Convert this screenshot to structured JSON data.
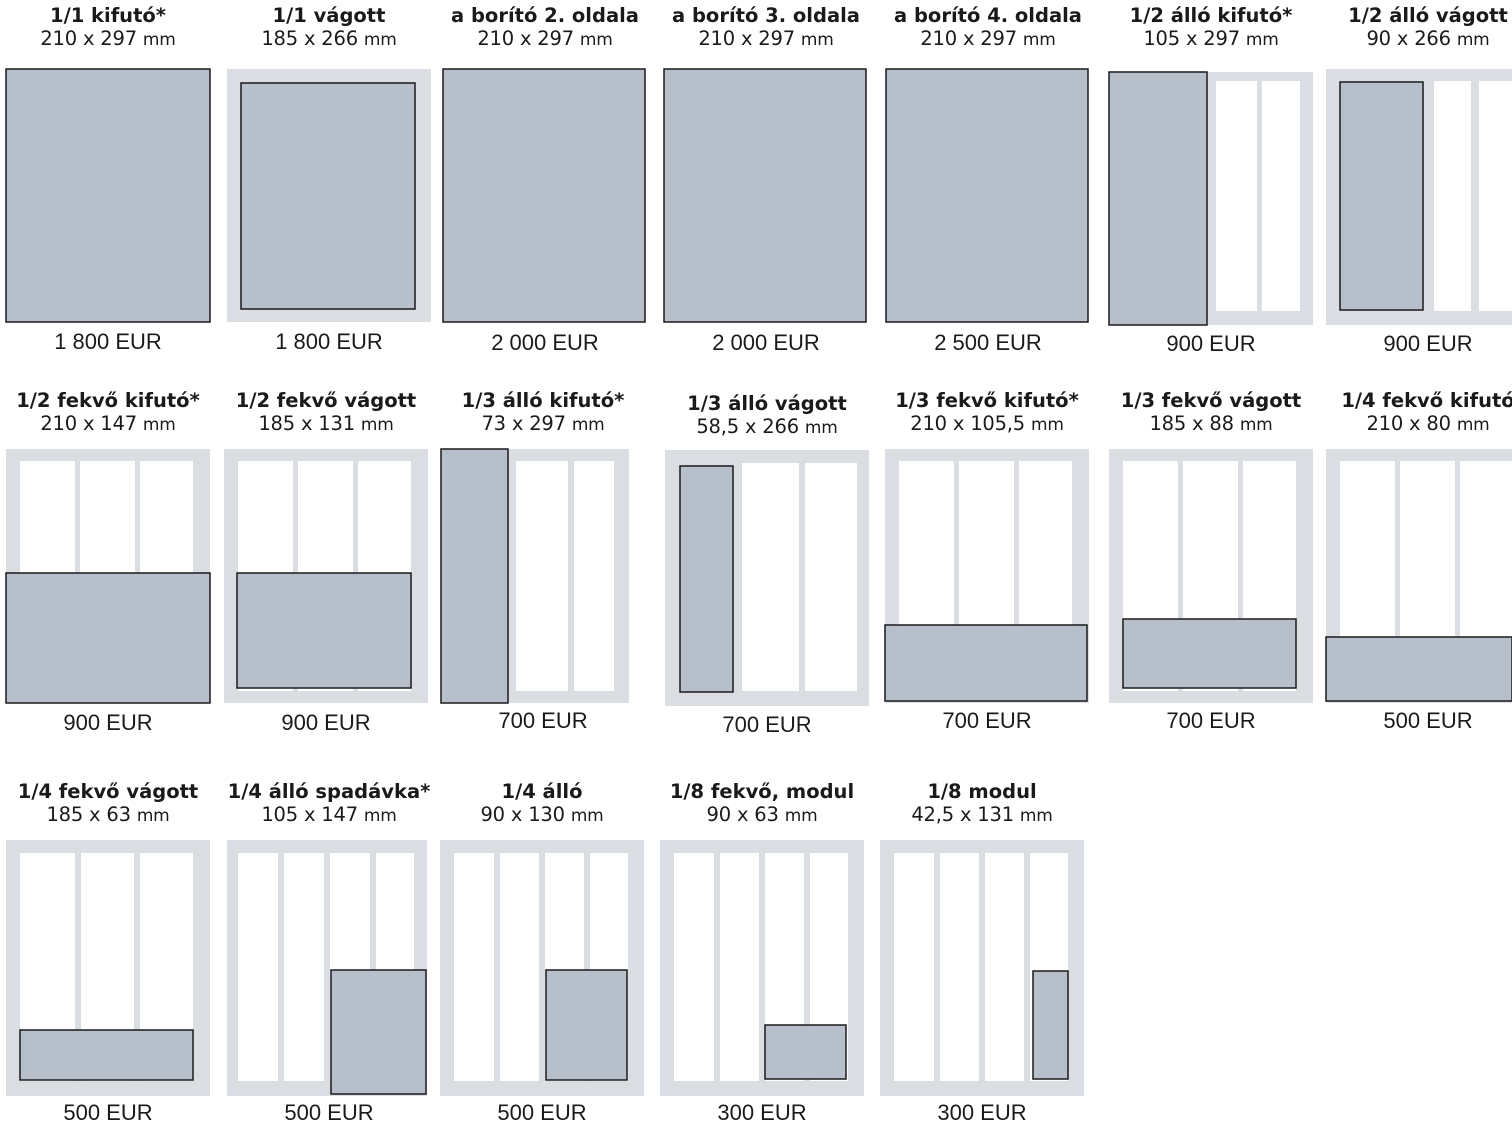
{
  "colors": {
    "margin_gray": "#dadee2",
    "ad_fill": "#b7c0ca",
    "column_white": "#ffffff",
    "outline": "#1a1a1a"
  },
  "ads": [
    {
      "title": "1/1 kifutó*",
      "size": "210 x 297",
      "unit": "mm",
      "price": "1 800 EUR"
    },
    {
      "title": "1/1 vágott",
      "size": "185 x 266",
      "unit": "mm",
      "price": "1 800 EUR"
    },
    {
      "title": "a borító 2. oldala",
      "size": "210 x 297",
      "unit": "mm",
      "price": "2 000 EUR"
    },
    {
      "title": "a borító 3. oldala",
      "size": "210 x 297",
      "unit": "mm",
      "price": "2 000 EUR"
    },
    {
      "title": "a borító 4. oldala",
      "size": "210 x 297",
      "unit": "mm",
      "price": "2 500 EUR"
    },
    {
      "title": "1/2 álló kifutó*",
      "size": "105 x 297",
      "unit": "mm",
      "price": "900 EUR"
    },
    {
      "title": "1/2 álló vágott",
      "size": "90 x 266",
      "unit": "mm",
      "price": "900 EUR"
    },
    {
      "title": "1/2 fekvő kifutó*",
      "size": "210 x 147",
      "unit": "mm",
      "price": "900 EUR"
    },
    {
      "title": "1/2 fekvő vágott",
      "size": "185 x 131",
      "unit": "mm",
      "price": "900 EUR"
    },
    {
      "title": "1/3 álló kifutó*",
      "size": "73 x 297",
      "unit": "mm",
      "price": "700 EUR"
    },
    {
      "title": "1/3 álló vágott",
      "size": "58,5 x 266",
      "unit": "mm",
      "price": "700 EUR"
    },
    {
      "title": "1/3 fekvő kifutó*",
      "size": "210 x 105,5",
      "unit": "mm",
      "price": "700 EUR"
    },
    {
      "title": "1/3 fekvő vágott",
      "size": "185 x 88",
      "unit": "mm",
      "price": "700 EUR"
    },
    {
      "title": "1/4 fekvő kifutó",
      "size": "210 x 80",
      "unit": "mm",
      "price": "500 EUR"
    },
    {
      "title": "1/4 fekvő vágott",
      "size": "185 x 63",
      "unit": "mm",
      "price": "500 EUR"
    },
    {
      "title": "1/4 álló spadávka*",
      "size": "105 x 147",
      "unit": "mm",
      "price": "500 EUR"
    },
    {
      "title": "1/4 álló",
      "size": "90 x 130",
      "unit": "mm",
      "price": "500 EUR"
    },
    {
      "title": "1/8 fekvő, modul",
      "size": "90 x 63",
      "unit": "mm",
      "price": "300 EUR"
    },
    {
      "title": "1/8 modul",
      "size": "42,5 x 131",
      "unit": "mm",
      "price": "300 EUR"
    }
  ]
}
